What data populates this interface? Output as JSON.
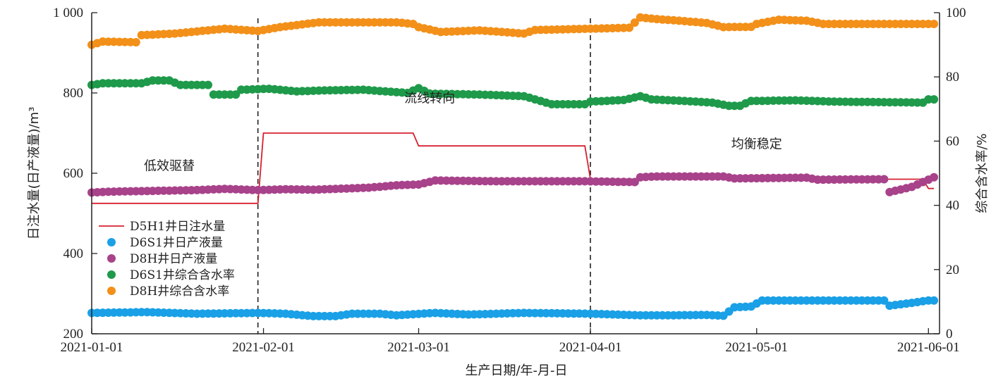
{
  "chart_data": {
    "type": "line+scatter",
    "xlabel": "生产日期/年-月-日",
    "ylabel_left": "日注水量(日产液量)/m³",
    "ylabel_right": "综合含水率/%",
    "x_ticks": [
      "2021-01-01",
      "2021-02-01",
      "2021-03-01",
      "2021-04-01",
      "2021-05-01",
      "2021-06-01"
    ],
    "x_range": [
      "2021-01-01",
      "2021-06-03"
    ],
    "ylim_left": [
      200,
      1000
    ],
    "y_ticks_left": [
      200,
      400,
      600,
      800,
      1000
    ],
    "y_ticks_left_labels": [
      "200",
      "400",
      "600",
      "800",
      "1 000"
    ],
    "ylim_right": [
      0,
      100
    ],
    "y_ticks_right": [
      0,
      20,
      40,
      60,
      80,
      100
    ],
    "phase_dividers": [
      "2021-01-31",
      "2021-04-01"
    ],
    "annotations": [
      {
        "text": "低效驱替",
        "x": "2021-01-15",
        "y": 608
      },
      {
        "text": "流线转向",
        "x": "2021-03-03",
        "y": 776
      },
      {
        "text": "均衡稳定",
        "x": "2021-05-01",
        "y": 662
      }
    ],
    "legend": {
      "placement": "left-middle",
      "entries": [
        "D5H1井日注水量",
        "D6S1井日产液量",
        "D8H井日产液量",
        "D6S1井综合含水率",
        "D8H井综合含水率"
      ]
    },
    "series": [
      {
        "name": "D5H1井日注水量",
        "kind": "line",
        "axis": "left",
        "color": "#d62030",
        "points": [
          [
            "2021-01-01",
            525
          ],
          [
            "2021-01-31",
            525
          ],
          [
            "2021-02-01",
            700
          ],
          [
            "2021-02-28",
            700
          ],
          [
            "2021-03-01",
            668
          ],
          [
            "2021-03-31",
            668
          ],
          [
            "2021-04-01",
            585
          ],
          [
            "2021-05-31",
            585
          ],
          [
            "2021-06-01",
            562
          ],
          [
            "2021-06-02",
            562
          ]
        ]
      },
      {
        "name": "D6S1井日产液量",
        "kind": "scatter",
        "axis": "left",
        "color": "#1aa0e6",
        "points": [
          [
            "2021-01-01",
            252
          ],
          [
            "2021-01-11",
            254
          ],
          [
            "2021-01-20",
            250
          ],
          [
            "2021-01-31",
            252
          ],
          [
            "2021-02-05",
            250
          ],
          [
            "2021-02-10",
            244
          ],
          [
            "2021-02-14",
            244
          ],
          [
            "2021-02-17",
            250
          ],
          [
            "2021-02-22",
            250
          ],
          [
            "2021-02-25",
            246
          ],
          [
            "2021-03-04",
            252
          ],
          [
            "2021-03-10",
            248
          ],
          [
            "2021-03-20",
            252
          ],
          [
            "2021-04-01",
            250
          ],
          [
            "2021-04-10",
            246
          ],
          [
            "2021-04-15",
            246
          ],
          [
            "2021-04-22",
            247
          ],
          [
            "2021-04-25",
            245
          ],
          [
            "2021-04-27",
            266
          ],
          [
            "2021-04-30",
            268
          ],
          [
            "2021-05-02",
            283
          ],
          [
            "2021-05-15",
            283
          ],
          [
            "2021-05-24",
            283
          ],
          [
            "2021-05-25",
            270
          ],
          [
            "2021-05-29",
            277
          ],
          [
            "2021-06-01",
            283
          ],
          [
            "2021-06-02",
            283
          ]
        ]
      },
      {
        "name": "D8H井日产液量",
        "kind": "scatter",
        "axis": "left",
        "color": "#a8428a",
        "points": [
          [
            "2021-01-01",
            552
          ],
          [
            "2021-01-04",
            554
          ],
          [
            "2021-01-20",
            558
          ],
          [
            "2021-01-25",
            561
          ],
          [
            "2021-01-31",
            558
          ],
          [
            "2021-02-05",
            560
          ],
          [
            "2021-02-10",
            559
          ],
          [
            "2021-02-20",
            564
          ],
          [
            "2021-02-25",
            570
          ],
          [
            "2021-03-01",
            572
          ],
          [
            "2021-03-04",
            582
          ],
          [
            "2021-03-15",
            580
          ],
          [
            "2021-03-31",
            580
          ],
          [
            "2021-04-09",
            578
          ],
          [
            "2021-04-10",
            590
          ],
          [
            "2021-04-13",
            592
          ],
          [
            "2021-04-25",
            592
          ],
          [
            "2021-04-27",
            587
          ],
          [
            "2021-05-10",
            589
          ],
          [
            "2021-05-12",
            584
          ],
          [
            "2021-05-24",
            585
          ],
          [
            "2021-05-25",
            553
          ],
          [
            "2021-05-29",
            566
          ],
          [
            "2021-06-02",
            590
          ]
        ]
      },
      {
        "name": "D6S1井综合含水率",
        "kind": "scatter",
        "axis": "right",
        "color": "#1e9a4a",
        "points": [
          [
            "2021-01-01",
            77.5
          ],
          [
            "2021-01-03",
            78.0
          ],
          [
            "2021-01-10",
            78.0
          ],
          [
            "2021-01-12",
            78.9
          ],
          [
            "2021-01-15",
            78.9
          ],
          [
            "2021-01-17",
            77.5
          ],
          [
            "2021-01-22",
            77.5
          ],
          [
            "2021-01-23",
            74.5
          ],
          [
            "2021-01-27",
            74.5
          ],
          [
            "2021-01-28",
            76.0
          ],
          [
            "2021-02-02",
            76.3
          ],
          [
            "2021-02-07",
            75.5
          ],
          [
            "2021-02-12",
            75.8
          ],
          [
            "2021-02-19",
            76.0
          ],
          [
            "2021-02-27",
            75.0
          ],
          [
            "2021-03-01",
            76.5
          ],
          [
            "2021-03-03",
            74.8
          ],
          [
            "2021-03-12",
            74.5
          ],
          [
            "2021-03-20",
            74.0
          ],
          [
            "2021-03-22",
            73.0
          ],
          [
            "2021-03-25",
            71.5
          ],
          [
            "2021-03-31",
            71.5
          ],
          [
            "2021-04-01",
            72.3
          ],
          [
            "2021-04-07",
            72.8
          ],
          [
            "2021-04-10",
            74.0
          ],
          [
            "2021-04-12",
            73.0
          ],
          [
            "2021-04-18",
            72.5
          ],
          [
            "2021-04-23",
            72.0
          ],
          [
            "2021-04-26",
            71.0
          ],
          [
            "2021-04-28",
            71.0
          ],
          [
            "2021-04-30",
            72.5
          ],
          [
            "2021-05-08",
            72.7
          ],
          [
            "2021-05-15",
            72.3
          ],
          [
            "2021-05-31",
            72.0
          ],
          [
            "2021-06-01",
            73.0
          ],
          [
            "2021-06-02",
            73.0
          ]
        ]
      },
      {
        "name": "D8H井综合含水率",
        "kind": "scatter",
        "axis": "right",
        "color": "#f39019",
        "points": [
          [
            "2021-01-01",
            90.0
          ],
          [
            "2021-01-03",
            91.0
          ],
          [
            "2021-01-09",
            90.8
          ],
          [
            "2021-01-10",
            93.0
          ],
          [
            "2021-01-16",
            93.5
          ],
          [
            "2021-01-25",
            95.0
          ],
          [
            "2021-01-31",
            94.3
          ],
          [
            "2021-02-04",
            95.5
          ],
          [
            "2021-02-11",
            97.0
          ],
          [
            "2021-02-25",
            97.0
          ],
          [
            "2021-02-28",
            96.5
          ],
          [
            "2021-03-01",
            95.5
          ],
          [
            "2021-03-05",
            94.0
          ],
          [
            "2021-03-12",
            94.5
          ],
          [
            "2021-03-20",
            93.5
          ],
          [
            "2021-03-22",
            94.6
          ],
          [
            "2021-04-08",
            95.3
          ],
          [
            "2021-04-10",
            98.5
          ],
          [
            "2021-04-13",
            98.0
          ],
          [
            "2021-04-17",
            97.5
          ],
          [
            "2021-04-22",
            96.8
          ],
          [
            "2021-04-25",
            95.5
          ],
          [
            "2021-04-30",
            95.6
          ],
          [
            "2021-05-01",
            96.5
          ],
          [
            "2021-05-05",
            97.8
          ],
          [
            "2021-05-10",
            97.5
          ],
          [
            "2021-05-13",
            96.5
          ],
          [
            "2021-06-02",
            96.5
          ]
        ]
      }
    ]
  }
}
